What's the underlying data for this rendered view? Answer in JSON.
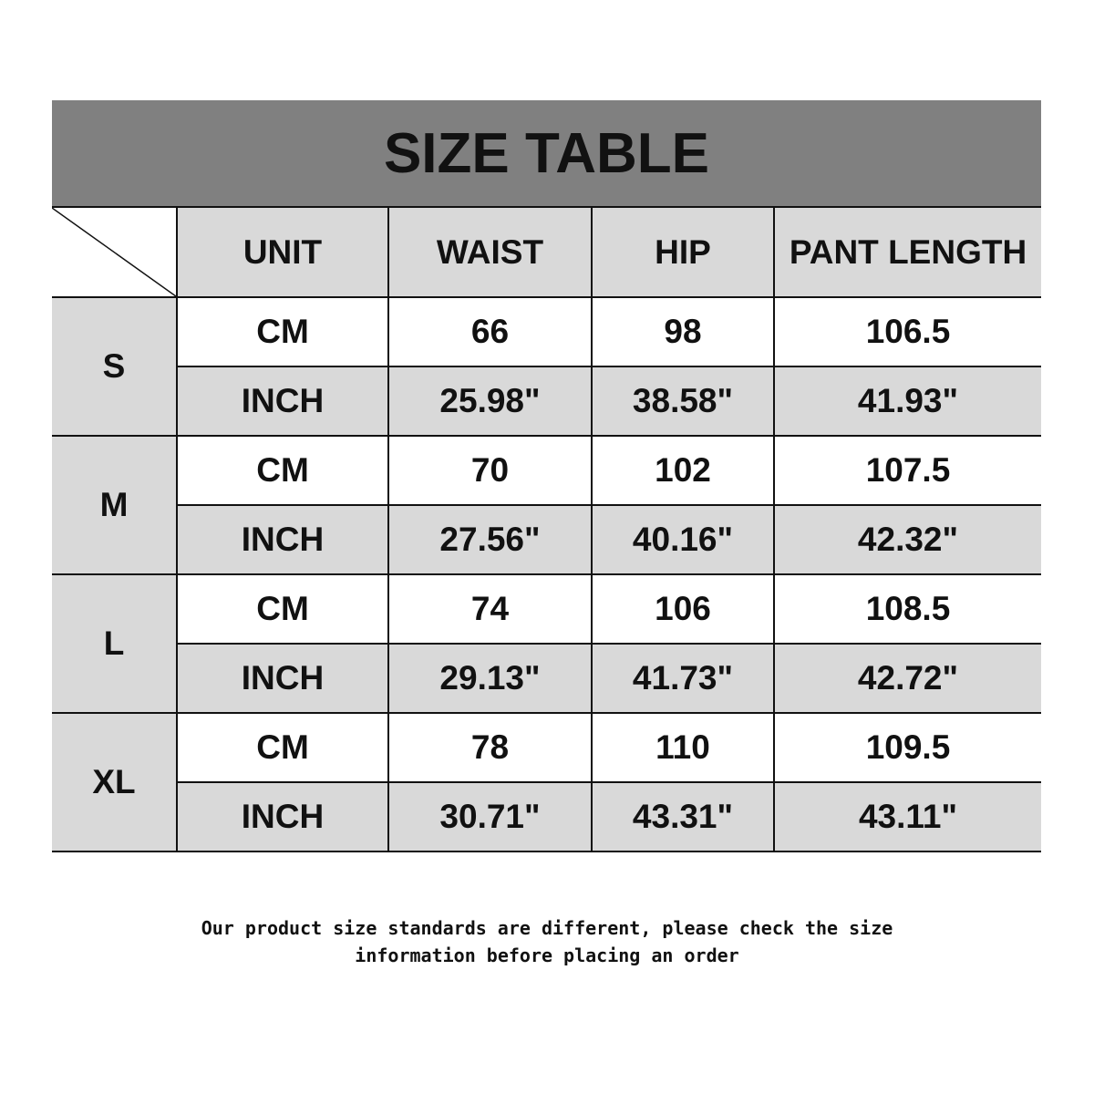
{
  "title": "SIZE TABLE",
  "headers": [
    "UNIT",
    "WAIST",
    "HIP",
    "PANT LENGTH"
  ],
  "rows": [
    {
      "size": "S",
      "cm": {
        "unit": "CM",
        "waist": "66",
        "hip": "98",
        "pant": "106.5"
      },
      "inch": {
        "unit": "INCH",
        "waist": "25.98\"",
        "hip": "38.58\"",
        "pant": "41.93\""
      }
    },
    {
      "size": "M",
      "cm": {
        "unit": "CM",
        "waist": "70",
        "hip": "102",
        "pant": "107.5"
      },
      "inch": {
        "unit": "INCH",
        "waist": "27.56\"",
        "hip": "40.16\"",
        "pant": "42.32\""
      }
    },
    {
      "size": "L",
      "cm": {
        "unit": "CM",
        "waist": "74",
        "hip": "106",
        "pant": "108.5"
      },
      "inch": {
        "unit": "INCH",
        "waist": "29.13\"",
        "hip": "41.73\"",
        "pant": "42.72\""
      }
    },
    {
      "size": "XL",
      "cm": {
        "unit": "CM",
        "waist": "78",
        "hip": "110",
        "pant": "109.5"
      },
      "inch": {
        "unit": "INCH",
        "waist": "30.71\"",
        "hip": "43.31\"",
        "pant": "43.11\""
      }
    }
  ],
  "note_line1": "Our product size standards are different, please check the size",
  "note_line2": "information before placing an order"
}
